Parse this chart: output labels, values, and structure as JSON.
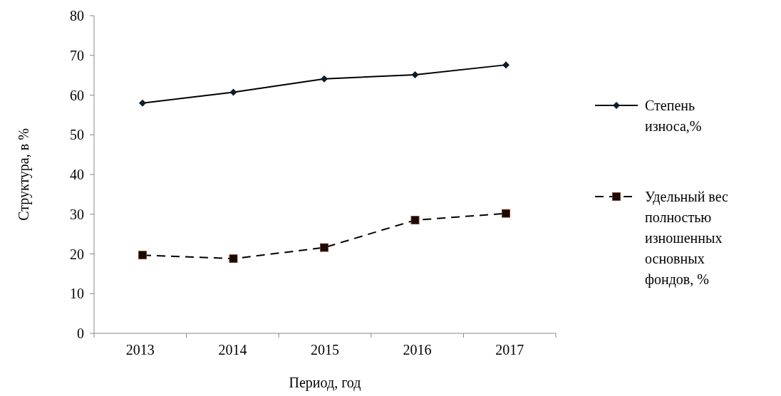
{
  "chart_data": {
    "type": "line",
    "xlabel": "Период, год",
    "ylabel": "Структура, в %",
    "categories": [
      "2013",
      "2014",
      "2015",
      "2016",
      "2017"
    ],
    "ylim": [
      0,
      80
    ],
    "yticks": [
      0,
      10,
      20,
      30,
      40,
      50,
      60,
      70,
      80
    ],
    "grid": false,
    "legend": "right",
    "series": [
      {
        "name": "Степень износа,%",
        "color": "#0d1b2a",
        "marker": "diamond",
        "line_style": "solid",
        "values": [
          58.0,
          60.7,
          64.1,
          65.1,
          67.6
        ]
      },
      {
        "name": "Удельный вес полностью изношенных основных фондов, %",
        "color": "#1a0a05",
        "marker": "square",
        "line_style": "dashed",
        "values": [
          19.7,
          18.8,
          21.6,
          28.5,
          30.2
        ]
      }
    ]
  }
}
